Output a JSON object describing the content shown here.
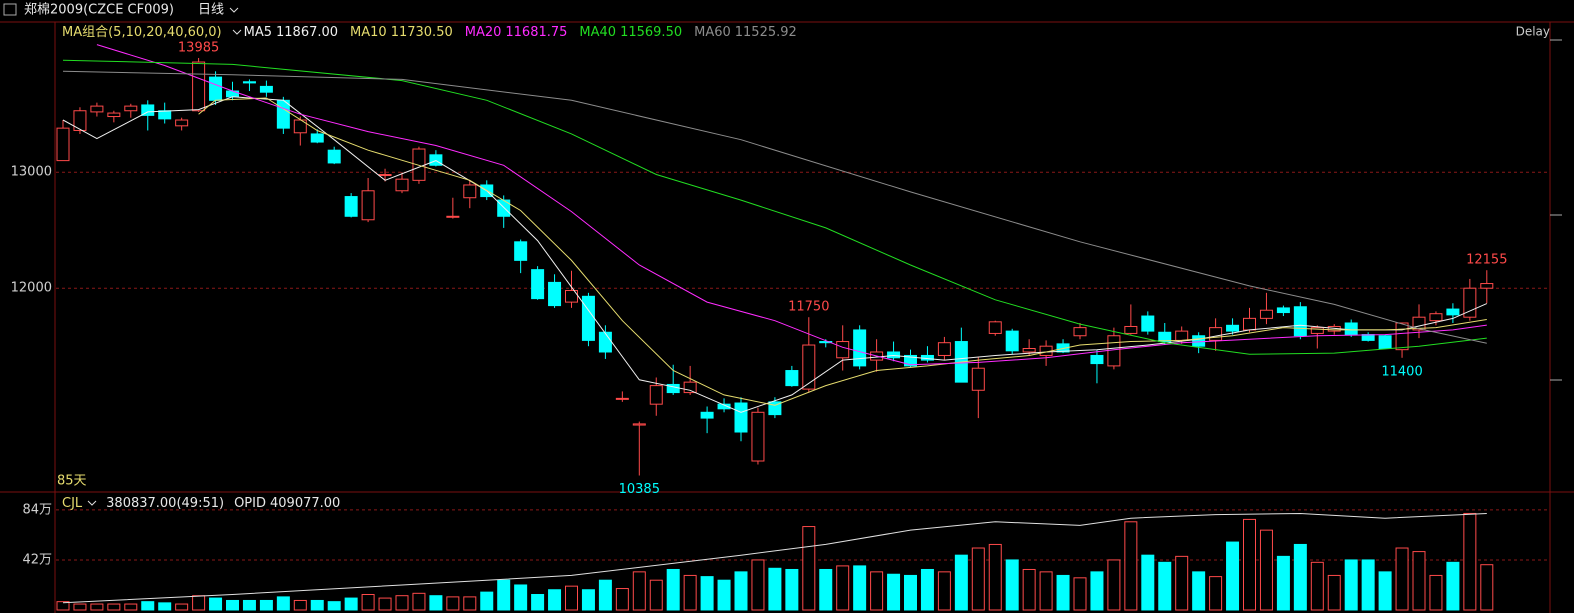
{
  "header": {
    "symbol": "郑棉2009(CZCE CF009)",
    "period": "日线",
    "delay": "Delay"
  },
  "chart_data": [
    {
      "type": "candlestick",
      "legend_title": "MA组合(5,10,20,40,60,0)",
      "days_label": "85天",
      "up_color": "#ff4a4a",
      "down_color": "#00ffff",
      "ylim": [
        10260,
        14140
      ],
      "yticks": [
        12000,
        13000
      ],
      "grid": true,
      "open": [
        13100,
        13360,
        13520,
        13480,
        13530,
        13580,
        13530,
        13400,
        13530,
        13820,
        13700,
        13780,
        13740,
        13620,
        13340,
        13330,
        13190,
        12790,
        12590,
        12980,
        12840,
        12930,
        13150,
        12620,
        12780,
        12890,
        12760,
        12400,
        12160,
        12050,
        11880,
        11930,
        11620,
        11050,
        10820,
        11000,
        11170,
        11100,
        10930,
        11000,
        11010,
        10510,
        11020,
        11290,
        11130,
        11540,
        11400,
        11640,
        11380,
        11450,
        11420,
        11420,
        11420,
        11540,
        11120,
        11610,
        11630,
        11450,
        11420,
        11520,
        11590,
        11420,
        11330,
        11610,
        11760,
        11620,
        11550,
        11590,
        11550,
        11680,
        11640,
        11740,
        11830,
        11840,
        11610,
        11630,
        11700,
        11600,
        11590,
        11470,
        11640,
        11720,
        11820,
        11750,
        12000
      ],
      "high": [
        13450,
        13560,
        13600,
        13530,
        13590,
        13620,
        13600,
        13470,
        13985,
        13870,
        13780,
        13800,
        13790,
        13650,
        13480,
        13370,
        13220,
        12820,
        12950,
        13030,
        13000,
        13220,
        13190,
        12780,
        12930,
        12930,
        12800,
        12420,
        12190,
        12120,
        12150,
        11960,
        11680,
        11110,
        10850,
        11230,
        11340,
        11330,
        10980,
        11050,
        11060,
        10970,
        11060,
        11330,
        11750,
        11560,
        11680,
        11680,
        11560,
        11540,
        11470,
        11500,
        11580,
        11660,
        11410,
        11720,
        11650,
        11560,
        11550,
        11560,
        11700,
        11470,
        11660,
        11860,
        11800,
        11700,
        11670,
        11620,
        11740,
        11740,
        11830,
        11960,
        11850,
        11880,
        11680,
        11690,
        11730,
        11620,
        11600,
        11700,
        11860,
        11800,
        11870,
        12080,
        12155
      ],
      "low": [
        13100,
        13330,
        13480,
        13430,
        13470,
        13360,
        13420,
        13360,
        13520,
        13580,
        13620,
        13700,
        13650,
        13330,
        13230,
        13250,
        13070,
        12610,
        12570,
        12920,
        12820,
        12900,
        13050,
        12600,
        12690,
        12760,
        12520,
        12130,
        11900,
        11830,
        11830,
        11500,
        11390,
        11020,
        10385,
        10900,
        11080,
        11080,
        10750,
        10930,
        10680,
        10480,
        10880,
        11150,
        11100,
        11490,
        11290,
        11300,
        11280,
        11370,
        11320,
        11360,
        11380,
        11190,
        10880,
        11590,
        11430,
        11420,
        11330,
        11440,
        11560,
        11180,
        11300,
        11600,
        11600,
        11510,
        11520,
        11440,
        11460,
        11600,
        11620,
        11690,
        11760,
        11560,
        11480,
        11600,
        11580,
        11540,
        11480,
        11400,
        11570,
        11680,
        11700,
        11720,
        11870
      ],
      "close": [
        13380,
        13530,
        13570,
        13510,
        13570,
        13490,
        13460,
        13450,
        13950,
        13620,
        13650,
        13770,
        13690,
        13380,
        13450,
        13260,
        13080,
        12620,
        12840,
        12980,
        12940,
        13200,
        13060,
        12620,
        12890,
        12790,
        12620,
        12240,
        11910,
        11850,
        11980,
        11550,
        11450,
        11050,
        10830,
        11160,
        11100,
        11190,
        10880,
        10960,
        10760,
        10930,
        10910,
        11160,
        11510,
        11530,
        11540,
        11330,
        11450,
        11400,
        11330,
        11380,
        11530,
        11190,
        11310,
        11710,
        11460,
        11480,
        11500,
        11450,
        11660,
        11350,
        11590,
        11670,
        11630,
        11540,
        11630,
        11500,
        11660,
        11630,
        11740,
        11810,
        11790,
        11590,
        11660,
        11670,
        11600,
        11550,
        11480,
        11700,
        11750,
        11780,
        11770,
        12000,
        12040
      ],
      "high_labels": [
        8,
        44,
        84
      ],
      "low_labels": [
        34,
        79
      ],
      "series": [
        {
          "name": "MA5",
          "current": "11867.00",
          "color": "#f0f0f0",
          "x": [
            0,
            2,
            5,
            8,
            10,
            13,
            16,
            19,
            22,
            25,
            28,
            31,
            34,
            37,
            40,
            43,
            46,
            49,
            52,
            55,
            58,
            61,
            64,
            67,
            70,
            73,
            76,
            79,
            82,
            84
          ],
          "values": [
            13450,
            13290,
            13520,
            13540,
            13650,
            13620,
            13280,
            12930,
            13100,
            12840,
            12410,
            11810,
            11210,
            11120,
            10930,
            11080,
            11380,
            11420,
            11380,
            11420,
            11450,
            11470,
            11510,
            11560,
            11640,
            11680,
            11640,
            11640,
            11740,
            11867
          ]
        },
        {
          "name": "MA10",
          "current": "11730.50",
          "color": "#e6dc6e",
          "x": [
            8,
            9,
            12,
            15,
            18,
            21,
            24,
            27,
            30,
            33,
            36,
            39,
            42,
            45,
            48,
            51,
            54,
            57,
            60,
            63,
            66,
            69,
            72,
            75,
            78,
            81,
            84
          ],
          "values": [
            13500,
            13620,
            13640,
            13360,
            13190,
            13060,
            12930,
            12670,
            12240,
            11720,
            11290,
            11080,
            10990,
            11160,
            11290,
            11330,
            11380,
            11420,
            11510,
            11540,
            11550,
            11590,
            11660,
            11640,
            11640,
            11660,
            11730
          ]
        },
        {
          "name": "MA20",
          "current": "11681.75",
          "color": "#ff2cff",
          "x": [
            2,
            6,
            10,
            14,
            18,
            22,
            26,
            30,
            34,
            38,
            42,
            46,
            50,
            54,
            58,
            62,
            66,
            70,
            74,
            78,
            82,
            84
          ],
          "values": [
            14100,
            13920,
            13700,
            13500,
            13350,
            13230,
            13060,
            12660,
            12200,
            11880,
            11720,
            11490,
            11340,
            11360,
            11400,
            11470,
            11530,
            11560,
            11590,
            11600,
            11640,
            11682
          ]
        },
        {
          "name": "MA40",
          "current": "11569.50",
          "color": "#22dd22",
          "x": [
            0,
            10,
            20,
            25,
            30,
            35,
            40,
            45,
            50,
            55,
            60,
            65,
            70,
            75,
            80,
            84
          ],
          "values": [
            13966,
            13930,
            13790,
            13620,
            13330,
            12980,
            12760,
            12520,
            12200,
            11900,
            11690,
            11530,
            11430,
            11440,
            11500,
            11570
          ]
        },
        {
          "name": "MA60",
          "current": "11525.92",
          "color": "#8c8c8c",
          "x": [
            0,
            10,
            20,
            30,
            40,
            50,
            60,
            70,
            75,
            80,
            84
          ],
          "values": [
            13870,
            13840,
            13800,
            13620,
            13280,
            12830,
            12400,
            12020,
            11860,
            11650,
            11526
          ]
        }
      ]
    },
    {
      "type": "bar",
      "indicator": "CJL",
      "readout": "380837.00(49:51)",
      "ylim": [
        0,
        99
      ],
      "yticks": [
        {
          "value": 84,
          "label": "84万"
        },
        {
          "value": 42,
          "label": "42万"
        }
      ],
      "grid": true,
      "values": [
        7,
        5,
        5,
        5,
        5,
        7,
        6,
        5,
        12,
        10,
        8,
        8,
        8,
        11,
        8,
        8,
        7,
        10,
        13,
        10,
        12,
        14,
        12,
        11,
        11,
        15,
        25,
        21,
        13,
        17,
        20,
        17,
        25,
        18,
        32,
        25,
        34,
        29,
        28,
        25,
        32,
        42,
        35,
        34,
        70,
        34,
        37,
        37,
        32,
        30,
        29,
        34,
        32,
        46,
        52,
        55,
        42,
        34,
        32,
        29,
        27,
        32,
        42,
        74,
        46,
        40,
        45,
        32,
        28,
        57,
        76,
        67,
        45,
        55,
        40,
        29,
        42,
        42,
        32,
        52,
        49,
        29,
        40,
        81,
        38
      ],
      "series": [
        {
          "name": "OPID",
          "current": "409077.00",
          "color": "#e0e0e0",
          "x": [
            0,
            10,
            20,
            30,
            40,
            45,
            50,
            55,
            60,
            63,
            68,
            73,
            78,
            84
          ],
          "values": [
            6,
            13,
            21,
            29,
            46,
            55,
            67,
            74,
            71,
            77,
            80,
            81,
            77,
            81
          ]
        }
      ]
    }
  ]
}
